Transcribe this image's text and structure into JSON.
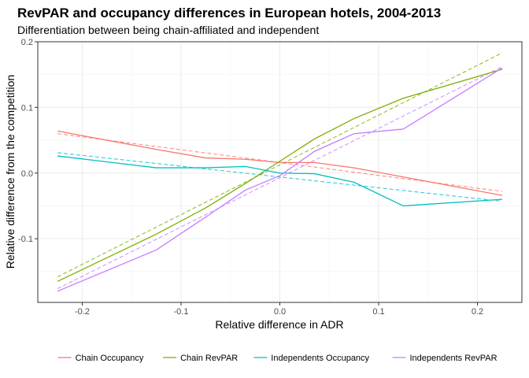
{
  "chart_data": {
    "type": "line",
    "title": "RevPAR and occupancy differences in European hotels, 2004-2013",
    "subtitle": "Differentiation between being chain-affiliated and independent",
    "xlabel": "Relative difference in ADR",
    "ylabel": "Relative difference from the competition",
    "xlim": [
      -0.245,
      0.245
    ],
    "ylim": [
      -0.197,
      0.2
    ],
    "x_ticks": [
      -0.2,
      -0.1,
      0.0,
      0.1,
      0.2
    ],
    "x_tick_labels": [
      "-0.2",
      "-0.1",
      "0.0",
      "0.1",
      "0.2"
    ],
    "y_ticks": [
      -0.1,
      0.0,
      0.1,
      0.2
    ],
    "y_tick_labels": [
      "-0.1",
      "0.0",
      "0.1",
      "0.2"
    ],
    "grid": true,
    "legend_position": "bottom",
    "x": [
      -0.225,
      -0.125,
      -0.075,
      -0.035,
      0.0,
      0.035,
      0.075,
      0.125,
      0.225
    ],
    "series": [
      {
        "name": "Chain Occupancy",
        "color": "#F8766D",
        "values": [
          0.064,
          0.036,
          0.023,
          0.021,
          0.016,
          0.016,
          0.008,
          -0.006,
          -0.034
        ],
        "trend": [
          0.06,
          -0.028
        ]
      },
      {
        "name": "Chain RevPAR",
        "color": "#7CAE00",
        "values": [
          -0.165,
          -0.093,
          -0.053,
          -0.016,
          0.018,
          0.052,
          0.083,
          0.114,
          0.158
        ],
        "trend": [
          -0.158,
          0.183
        ]
      },
      {
        "name": "Independents Occupancy",
        "color": "#00BFC4",
        "values": [
          0.026,
          0.008,
          0.008,
          0.01,
          0.0,
          -0.001,
          -0.014,
          -0.05,
          -0.04
        ],
        "trend": [
          0.031,
          -0.043
        ]
      },
      {
        "name": "Independents RevPAR",
        "color": "#C77CFF",
        "values": [
          -0.18,
          -0.117,
          -0.067,
          -0.026,
          -0.004,
          0.033,
          0.06,
          0.067,
          0.16
        ],
        "trend": [
          -0.176,
          0.162
        ]
      }
    ]
  }
}
